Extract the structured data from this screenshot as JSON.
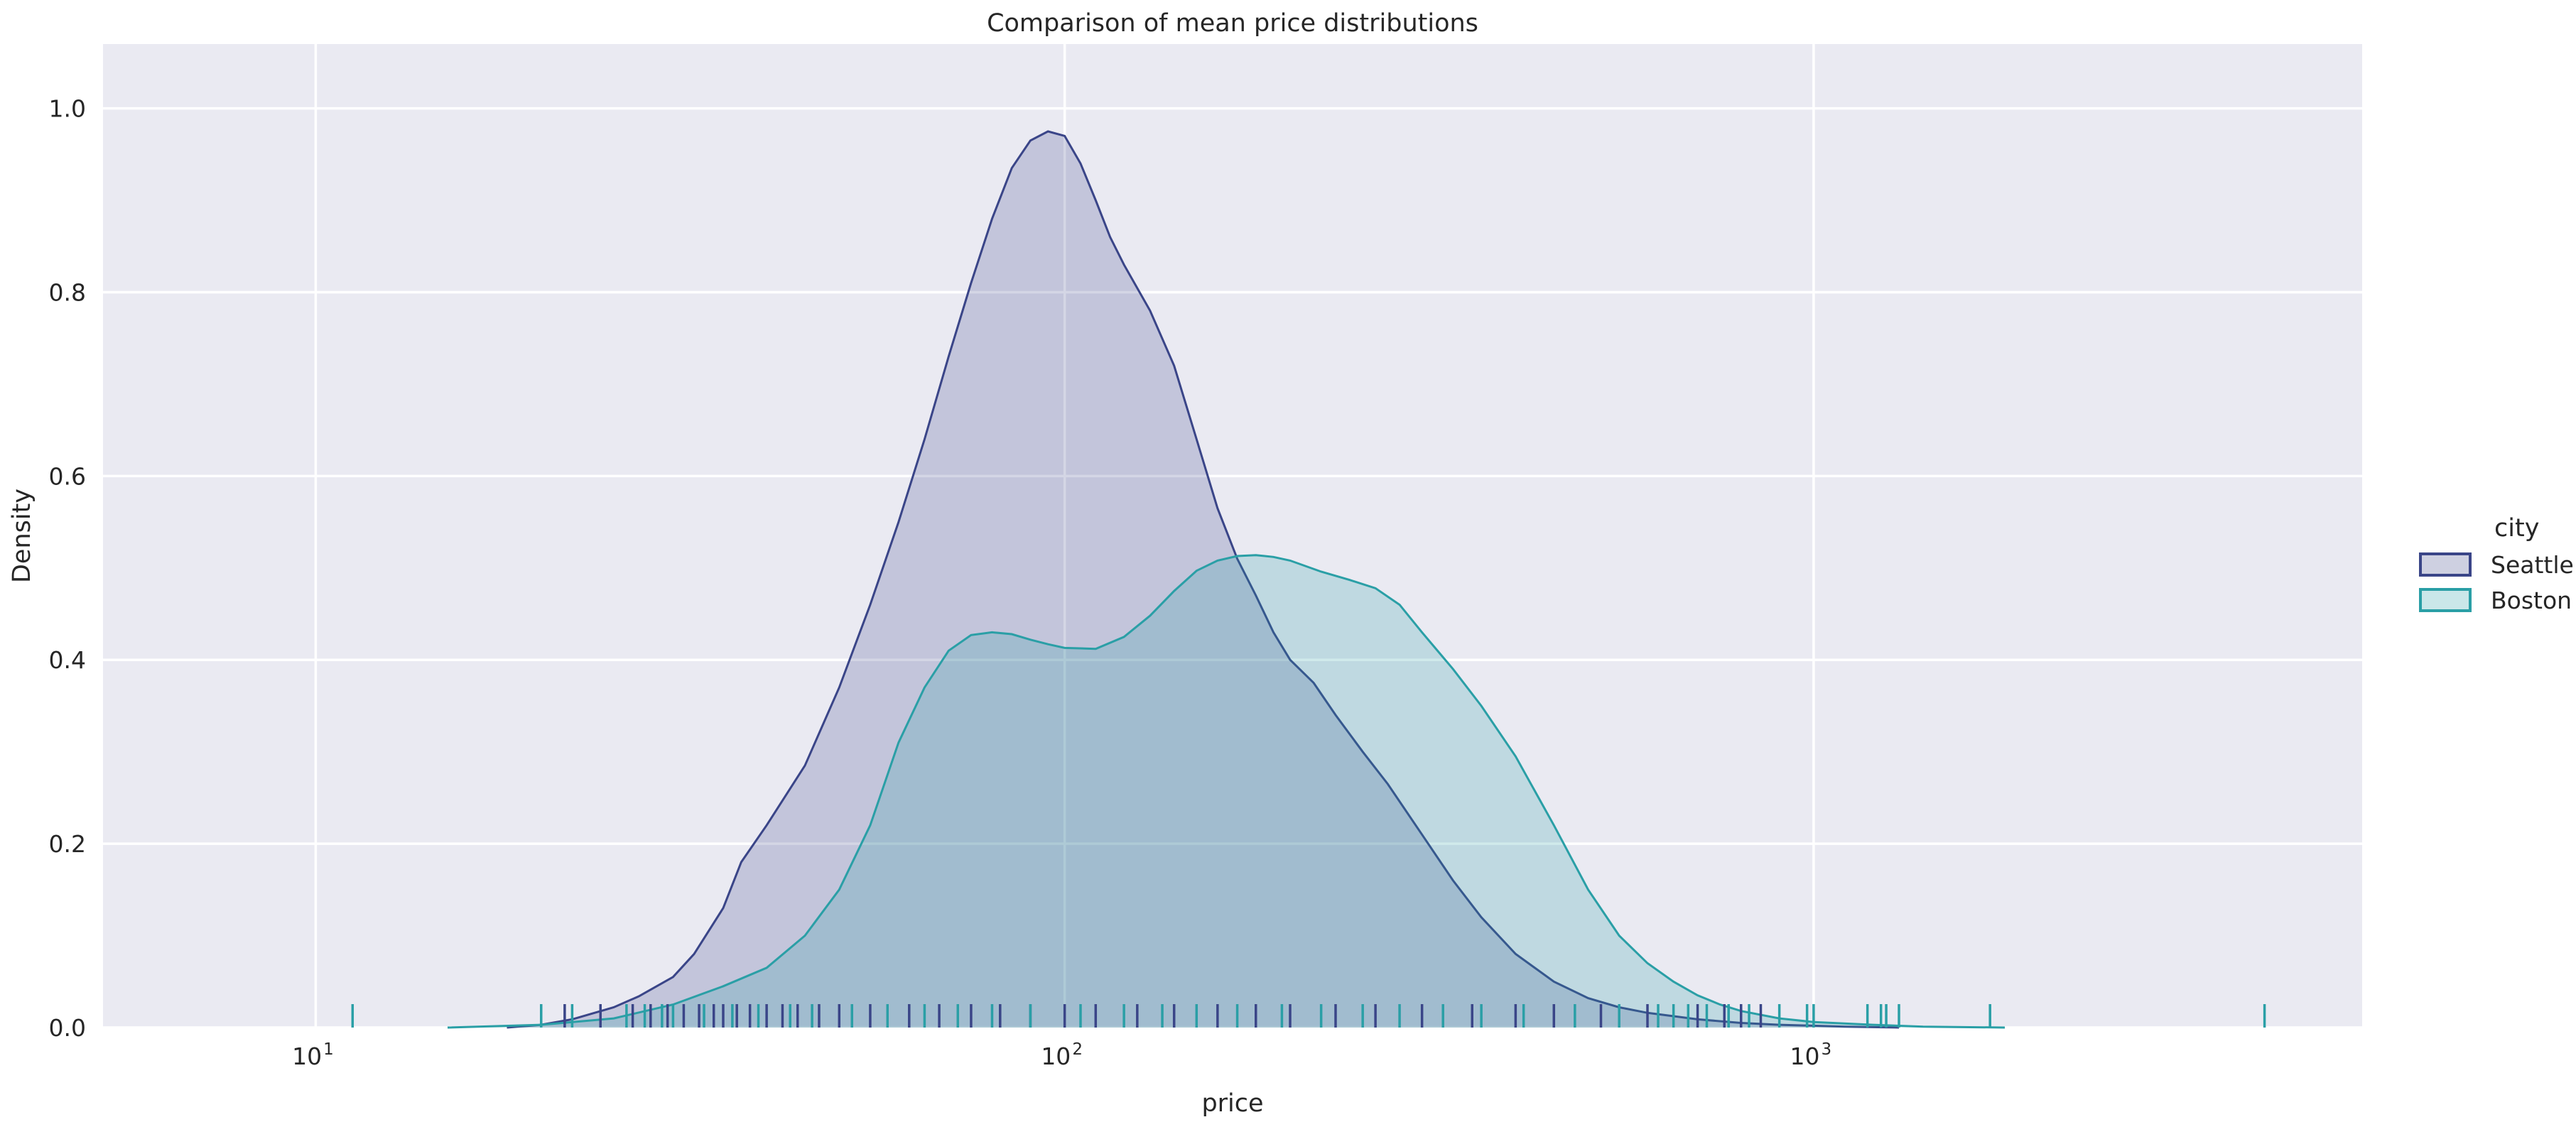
{
  "chart_data": {
    "type": "area",
    "title": "Comparison of mean price distributions",
    "xlabel": "price",
    "ylabel": "Density",
    "xscale": "log",
    "xlim": [
      5.2,
      5400
    ],
    "ylim": [
      0,
      1.07
    ],
    "x_ticks": [
      {
        "value": 10,
        "base": "10",
        "exp": "1"
      },
      {
        "value": 100,
        "base": "10",
        "exp": "2"
      },
      {
        "value": 1000,
        "base": "10",
        "exp": "3"
      }
    ],
    "y_ticks": [
      {
        "value": 0.0,
        "label": "0.0"
      },
      {
        "value": 0.2,
        "label": "0.2"
      },
      {
        "value": 0.4,
        "label": "0.4"
      },
      {
        "value": 0.6,
        "label": "0.6"
      },
      {
        "value": 0.8,
        "label": "0.8"
      },
      {
        "value": 1.0,
        "label": "1.0"
      }
    ],
    "grid": true,
    "background_color": "#eaeaf2",
    "legend": {
      "title": "city",
      "placement": "right"
    },
    "series": [
      {
        "name": "Seattle",
        "color": "#3a4588",
        "fill_opacity": 0.22,
        "x": [
          18,
          20,
          22,
          25,
          27,
          30,
          32,
          35,
          37,
          40,
          45,
          50,
          55,
          60,
          65,
          70,
          75,
          80,
          85,
          90,
          95,
          100,
          105,
          110,
          115,
          120,
          130,
          140,
          150,
          160,
          170,
          180,
          190,
          200,
          215,
          230,
          250,
          270,
          300,
          330,
          360,
          400,
          450,
          500,
          550,
          600,
          700,
          800,
          900,
          1000,
          1100,
          1300
        ],
        "y": [
          0.0,
          0.003,
          0.009,
          0.022,
          0.034,
          0.055,
          0.08,
          0.13,
          0.18,
          0.22,
          0.285,
          0.37,
          0.46,
          0.55,
          0.64,
          0.73,
          0.81,
          0.88,
          0.935,
          0.965,
          0.975,
          0.97,
          0.94,
          0.9,
          0.86,
          0.83,
          0.78,
          0.72,
          0.64,
          0.565,
          0.51,
          0.47,
          0.43,
          0.4,
          0.375,
          0.34,
          0.3,
          0.265,
          0.21,
          0.16,
          0.12,
          0.08,
          0.05,
          0.032,
          0.022,
          0.016,
          0.009,
          0.005,
          0.003,
          0.002,
          0.001,
          0.0
        ]
      },
      {
        "name": "Boston",
        "color": "#2a9fa6",
        "fill_opacity": 0.22,
        "x": [
          15,
          20,
          25,
          30,
          35,
          40,
          45,
          50,
          55,
          60,
          65,
          70,
          75,
          80,
          85,
          90,
          95,
          100,
          110,
          120,
          130,
          140,
          150,
          160,
          170,
          180,
          190,
          200,
          220,
          240,
          260,
          280,
          300,
          330,
          360,
          400,
          450,
          500,
          550,
          600,
          650,
          700,
          750,
          800,
          900,
          1000,
          1200,
          1400,
          1800
        ],
        "y": [
          0.0,
          0.003,
          0.01,
          0.025,
          0.045,
          0.065,
          0.1,
          0.15,
          0.22,
          0.31,
          0.37,
          0.41,
          0.427,
          0.43,
          0.428,
          0.422,
          0.417,
          0.413,
          0.412,
          0.425,
          0.448,
          0.475,
          0.497,
          0.508,
          0.513,
          0.514,
          0.512,
          0.508,
          0.496,
          0.487,
          0.478,
          0.46,
          0.43,
          0.39,
          0.35,
          0.295,
          0.22,
          0.15,
          0.1,
          0.07,
          0.05,
          0.035,
          0.025,
          0.018,
          0.01,
          0.006,
          0.003,
          0.001,
          0.0
        ]
      }
    ],
    "rug": [
      {
        "name": "Seattle",
        "color": "#3a4588",
        "x": [
          21.5,
          24,
          26.5,
          28,
          29.5,
          31,
          32.5,
          34,
          35,
          36.5,
          38,
          40,
          42,
          44,
          47,
          50,
          55,
          58,
          62,
          68,
          75,
          82,
          90,
          100,
          110,
          125,
          140,
          160,
          180,
          200,
          230,
          260,
          300,
          350,
          400,
          450,
          520,
          600,
          700,
          760,
          800,
          850
        ]
      },
      {
        "name": "Boston",
        "color": "#2a9fa6",
        "x": [
          11.2,
          20,
          22,
          26,
          27.5,
          29,
          30,
          33,
          36,
          39,
          43,
          46,
          52,
          58,
          65,
          72,
          80,
          90,
          105,
          120,
          135,
          150,
          170,
          195,
          220,
          250,
          280,
          320,
          360,
          410,
          480,
          550,
          620,
          650,
          680,
          720,
          770,
          820,
          900,
          980,
          1000,
          1180,
          1230,
          1250,
          1300,
          1720,
          4000
        ]
      }
    ]
  }
}
